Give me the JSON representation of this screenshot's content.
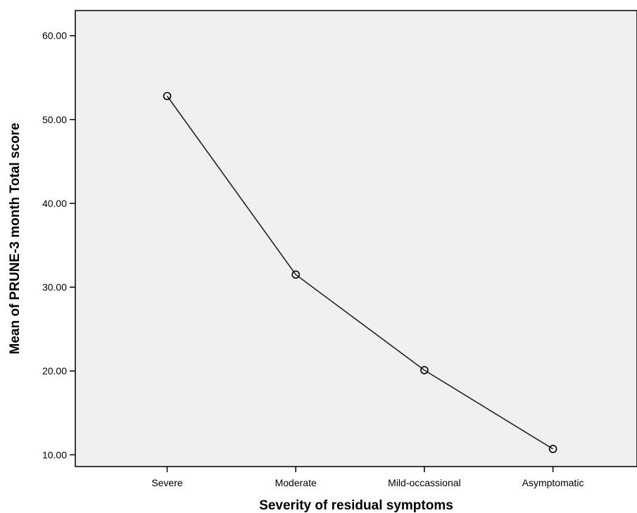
{
  "chart_data": {
    "type": "line",
    "xlabel": "Severity of residual symptoms",
    "ylabel": "Mean of PRUNE-3 month Total score",
    "categories": [
      "Severe",
      "Moderate",
      "Mild-occassional",
      "Asymptomatic"
    ],
    "series": [
      {
        "values": [
          52.8,
          31.5,
          20.1,
          10.7
        ]
      }
    ],
    "ylim": [
      8.6,
      63
    ],
    "yticks": [
      10,
      20,
      30,
      40,
      50,
      60
    ],
    "ytick_labels": [
      "10.00",
      "20.00",
      "30.00",
      "40.00",
      "50.00",
      "60.00"
    ],
    "grid": false,
    "plot_background": "#f0f0f0",
    "line_color": "#222222",
    "marker": "hollow-circle"
  }
}
